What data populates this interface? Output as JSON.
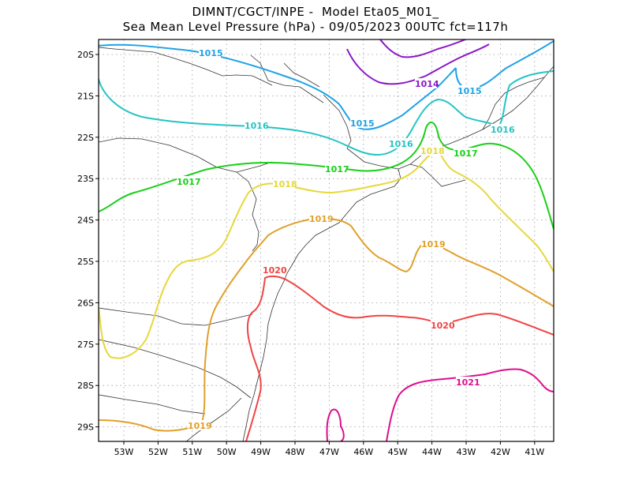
{
  "title": {
    "line1": "DIMNT/CGCT/INPE -  Model Eta05_M01_",
    "line2": "Sea Mean Level Pressure (hPa) - 09/05/2023 00UTC fct=117h"
  },
  "axes": {
    "lat_ticks": [
      "20S",
      "21S",
      "22S",
      "23S",
      "24S",
      "25S",
      "26S",
      "27S",
      "28S",
      "29S"
    ],
    "lon_ticks": [
      "53W",
      "52W",
      "51W",
      "50W",
      "49W",
      "48W",
      "47W",
      "46W",
      "45W",
      "44W",
      "43W",
      "42W",
      "41W"
    ]
  },
  "contours": [
    {
      "level": "1014",
      "color": "#8a17c8"
    },
    {
      "level": "1015",
      "color": "#1fa2e6"
    },
    {
      "level": "1016",
      "color": "#25c4c4"
    },
    {
      "level": "1017",
      "color": "#18d018"
    },
    {
      "level": "1018",
      "color": "#e6d83a"
    },
    {
      "level": "1019",
      "color": "#e0a02a"
    },
    {
      "level": "1020",
      "color": "#f04545"
    },
    {
      "level": "1021",
      "color": "#dc0f8c"
    }
  ]
}
